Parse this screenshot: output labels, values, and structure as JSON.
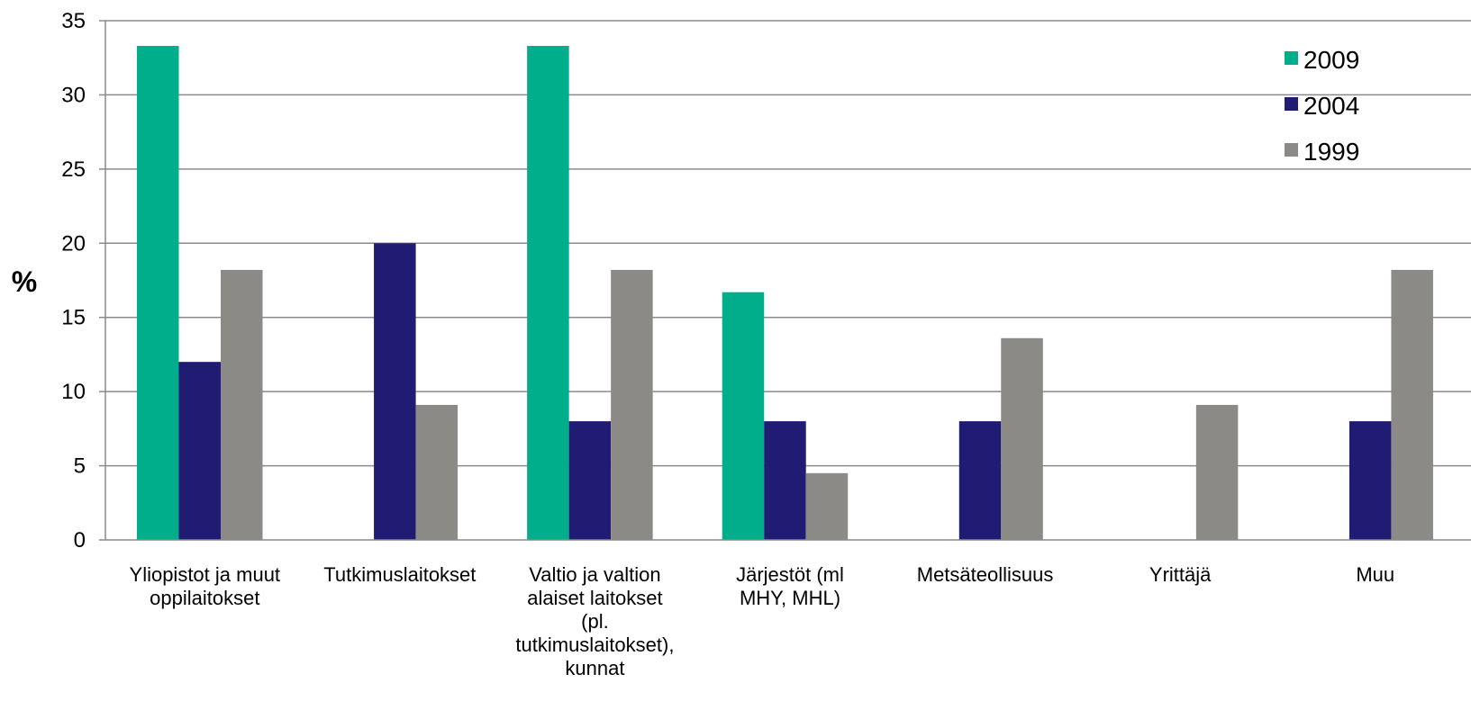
{
  "chart_data": {
    "type": "bar",
    "title": "",
    "xlabel": "",
    "ylabel": "%",
    "ylim": [
      0,
      35
    ],
    "yticks": [
      0,
      5,
      10,
      15,
      20,
      25,
      30,
      35
    ],
    "grid": true,
    "legend_position": "top-right",
    "categories": [
      [
        "Yliopistot ja muut",
        "oppilaitokset"
      ],
      [
        "Tutkimuslaitokset"
      ],
      [
        "Valtio ja valtion",
        "alaiset laitokset",
        "(pl.",
        "tutkimuslaitokset),",
        "kunnat"
      ],
      [
        "Järjestöt (ml",
        "MHY, MHL)"
      ],
      [
        "Metsäteollisuus"
      ],
      [
        "Yrittäjä"
      ],
      [
        "Muu"
      ]
    ],
    "series": [
      {
        "name": "2009",
        "color": "#00ae8c",
        "values": [
          33.3,
          0,
          33.3,
          16.7,
          0,
          0,
          0
        ]
      },
      {
        "name": "2004",
        "color": "#201c74",
        "values": [
          12,
          20,
          8,
          8,
          8,
          0,
          8
        ]
      },
      {
        "name": "1999",
        "color": "#8c8a86",
        "values": [
          18.2,
          9.1,
          18.2,
          4.5,
          13.6,
          9.1,
          18.2
        ]
      }
    ]
  }
}
